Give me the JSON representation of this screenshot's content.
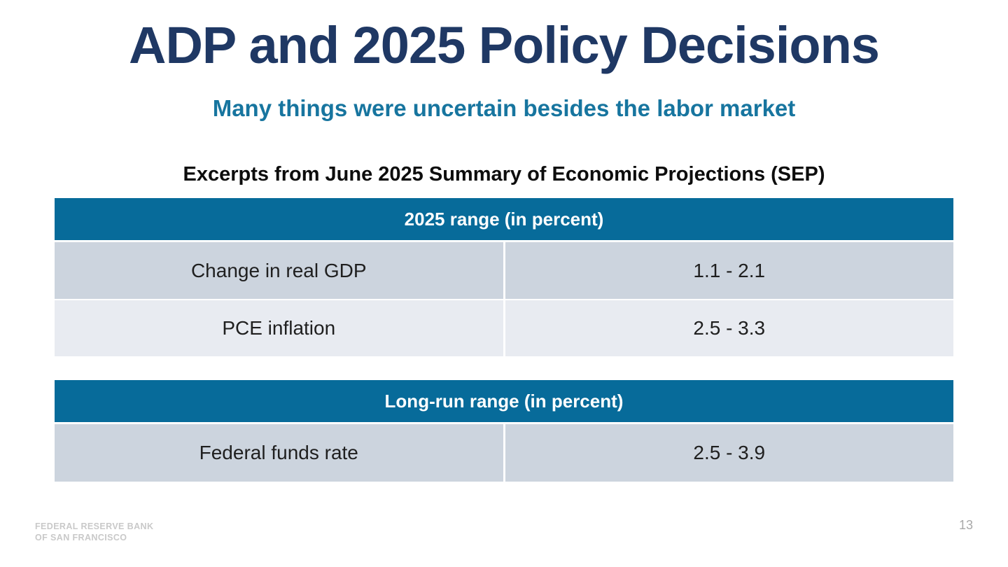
{
  "slide": {
    "title": "ADP and 2025 Policy Decisions",
    "subtitle": "Many things were uncertain besides the labor market",
    "caption": "Excerpts from June 2025 Summary of Economic Projections (SEP)",
    "footer_line1": "Federal Reserve Bank",
    "footer_line2": "of San Francisco",
    "page_number": "13"
  },
  "colors": {
    "title_navy": "#1f3864",
    "subtitle_teal": "#17759f",
    "table_header_bg": "#076b9a",
    "row_dark_bg": "#ccd4de",
    "row_light_bg": "#e8ebf1",
    "footer_gray": "#c9c9c9"
  },
  "tables": [
    {
      "header": "2025 range (in percent)",
      "rows": [
        {
          "label": "Change in real GDP",
          "value": "1.1 - 2.1"
        },
        {
          "label": "PCE inflation",
          "value": "2.5 - 3.3"
        }
      ]
    },
    {
      "header": "Long-run range (in percent)",
      "rows": [
        {
          "label": "Federal funds rate",
          "value": "2.5 - 3.9"
        }
      ]
    }
  ]
}
